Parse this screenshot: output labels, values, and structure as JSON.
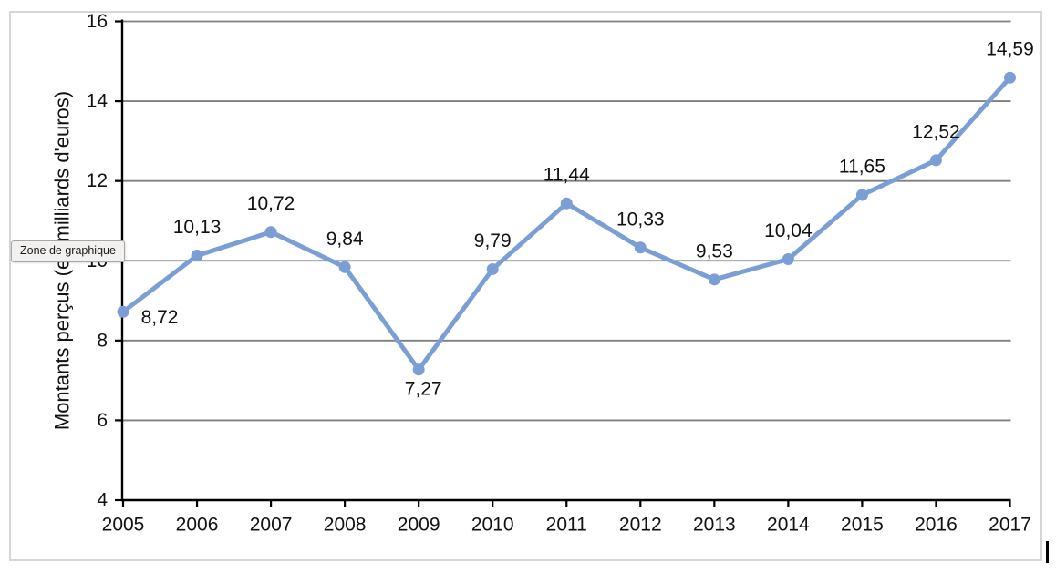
{
  "tooltip": {
    "label": "Zone de graphique"
  },
  "chart_data": {
    "type": "line",
    "title": "",
    "categories": [
      "2005",
      "2006",
      "2007",
      "2008",
      "2009",
      "2010",
      "2011",
      "2012",
      "2013",
      "2014",
      "2015",
      "2016",
      "2017"
    ],
    "values": [
      8.72,
      10.13,
      10.72,
      9.84,
      7.27,
      9.79,
      11.44,
      10.33,
      9.53,
      10.04,
      11.65,
      12.52,
      14.59
    ],
    "point_labels": [
      "8,72",
      "10,13",
      "10,72",
      "9,84",
      "7,27",
      "9,79",
      "11,44",
      "10,33",
      "9,53",
      "10,04",
      "11,65",
      "12,52",
      "14,59"
    ],
    "label_placements": [
      "right",
      "above",
      "above",
      "above",
      "below",
      "above",
      "above",
      "above",
      "above",
      "above",
      "above",
      "above",
      "above"
    ],
    "xlabel": "",
    "ylabel": "Montants perçus (en milliards d'euros)",
    "ylim": [
      4,
      16
    ],
    "yticks": [
      4,
      6,
      8,
      10,
      12,
      14,
      16
    ],
    "grid": "horizontal",
    "legend": "none",
    "line_color": "#7B9FD4",
    "marker_color": "#7B9FD4",
    "gridline_color": "#7f7f7f",
    "axis_color": "#000000",
    "text_color": "#111111"
  }
}
